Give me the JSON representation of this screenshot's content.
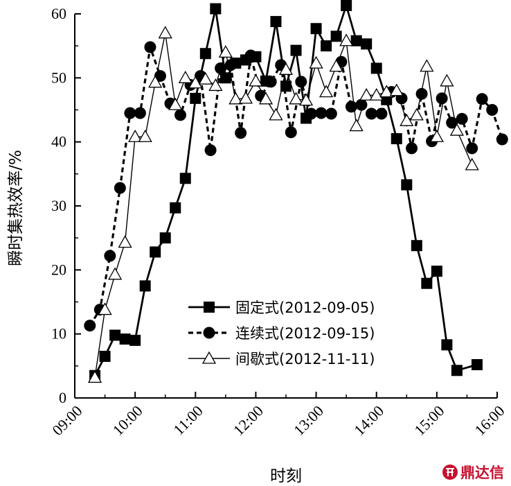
{
  "chart_data": {
    "type": "line",
    "xlabel": "时刻",
    "ylabel": "瞬时集热效率/%",
    "xlim": [
      "09:00",
      "16:00"
    ],
    "ylim": [
      0,
      60
    ],
    "xticks": [
      "09:00",
      "10:00",
      "11:00",
      "12:00",
      "13:00",
      "14:00",
      "15:00",
      "16:00"
    ],
    "yticks": [
      0,
      10,
      20,
      30,
      40,
      50,
      60
    ],
    "grid": false,
    "legend_position": "bottom-center",
    "series": [
      {
        "name": "固定式(2012-09-05)",
        "marker": "square",
        "line": "solid",
        "color": "#000000",
        "points": [
          [
            "09:20",
            3.5
          ],
          [
            "09:30",
            6.5
          ],
          [
            "09:40",
            9.8
          ],
          [
            "09:50",
            9.2
          ],
          [
            "10:00",
            9.0
          ],
          [
            "10:10",
            17.5
          ],
          [
            "10:20",
            22.8
          ],
          [
            "10:30",
            25.0
          ],
          [
            "10:40",
            29.7
          ],
          [
            "10:50",
            34.3
          ],
          [
            "11:00",
            46.8
          ],
          [
            "11:10",
            53.8
          ],
          [
            "11:20",
            60.8
          ],
          [
            "11:30",
            50.0
          ],
          [
            "11:40",
            52.3
          ],
          [
            "11:50",
            52.8
          ],
          [
            "12:00",
            53.3
          ],
          [
            "12:10",
            49.5
          ],
          [
            "12:20",
            58.8
          ],
          [
            "12:30",
            48.7
          ],
          [
            "12:40",
            54.3
          ],
          [
            "12:50",
            43.7
          ],
          [
            "13:00",
            57.7
          ],
          [
            "13:10",
            55.0
          ],
          [
            "13:20",
            56.5
          ],
          [
            "13:30",
            61.3
          ],
          [
            "13:40",
            55.8
          ],
          [
            "13:50",
            55.3
          ],
          [
            "14:00",
            51.5
          ],
          [
            "14:10",
            46.6
          ],
          [
            "14:20",
            40.5
          ],
          [
            "14:30",
            33.3
          ],
          [
            "14:40",
            23.8
          ],
          [
            "14:50",
            17.9
          ],
          [
            "15:00",
            19.8
          ],
          [
            "15:10",
            8.3
          ],
          [
            "15:20",
            4.3
          ],
          [
            "15:40",
            5.2
          ]
        ]
      },
      {
        "name": "连续式(2012-09-15)",
        "marker": "circle",
        "line": "dashed",
        "color": "#000000",
        "points": [
          [
            "09:15",
            11.3
          ],
          [
            "09:25",
            13.8
          ],
          [
            "09:35",
            22.2
          ],
          [
            "09:45",
            32.8
          ],
          [
            "09:55",
            44.5
          ],
          [
            "10:05",
            44.5
          ],
          [
            "10:15",
            54.8
          ],
          [
            "10:25",
            50.3
          ],
          [
            "10:35",
            46.0
          ],
          [
            "10:45",
            44.2
          ],
          [
            "10:55",
            48.9
          ],
          [
            "11:05",
            50.3
          ],
          [
            "11:15",
            38.7
          ],
          [
            "11:25",
            51.5
          ],
          [
            "11:35",
            52.0
          ],
          [
            "11:45",
            41.4
          ],
          [
            "11:55",
            53.5
          ],
          [
            "12:05",
            47.2
          ],
          [
            "12:15",
            49.4
          ],
          [
            "12:25",
            52.0
          ],
          [
            "12:35",
            41.5
          ],
          [
            "12:45",
            49.4
          ],
          [
            "12:55",
            44.4
          ],
          [
            "13:05",
            44.5
          ],
          [
            "13:15",
            44.4
          ],
          [
            "13:25",
            52.5
          ],
          [
            "13:35",
            45.5
          ],
          [
            "13:45",
            45.8
          ],
          [
            "13:55",
            44.4
          ],
          [
            "14:05",
            44.4
          ],
          [
            "14:15",
            47.8
          ],
          [
            "14:25",
            46.8
          ],
          [
            "14:35",
            39.0
          ],
          [
            "14:45",
            47.5
          ],
          [
            "14:55",
            40.1
          ],
          [
            "15:05",
            46.8
          ],
          [
            "15:15",
            43.0
          ],
          [
            "15:25",
            43.6
          ],
          [
            "15:35",
            39.0
          ],
          [
            "15:45",
            46.7
          ],
          [
            "15:55",
            45.0
          ],
          [
            "16:05",
            40.4
          ]
        ]
      },
      {
        "name": "间歇式(2012-11-11)",
        "marker": "triangle",
        "line": "solid-thin",
        "color": "#000000",
        "points": [
          [
            "09:20",
            3.2
          ],
          [
            "09:30",
            13.8
          ],
          [
            "09:40",
            19.3
          ],
          [
            "09:50",
            24.3
          ],
          [
            "10:00",
            40.8
          ],
          [
            "10:10",
            40.8
          ],
          [
            "10:20",
            49.3
          ],
          [
            "10:30",
            57.0
          ],
          [
            "10:40",
            45.8
          ],
          [
            "10:50",
            50.0
          ],
          [
            "11:00",
            49.2
          ],
          [
            "11:10",
            49.8
          ],
          [
            "11:20",
            48.8
          ],
          [
            "11:30",
            54.0
          ],
          [
            "11:40",
            46.7
          ],
          [
            "11:50",
            46.8
          ],
          [
            "12:00",
            49.5
          ],
          [
            "12:10",
            46.7
          ],
          [
            "12:20",
            44.2
          ],
          [
            "12:30",
            51.3
          ],
          [
            "12:40",
            46.7
          ],
          [
            "12:50",
            46.5
          ],
          [
            "13:00",
            52.3
          ],
          [
            "13:10",
            47.8
          ],
          [
            "13:20",
            51.8
          ],
          [
            "13:30",
            55.8
          ],
          [
            "13:40",
            42.5
          ],
          [
            "13:50",
            47.3
          ],
          [
            "14:00",
            47.3
          ],
          [
            "14:10",
            47.8
          ],
          [
            "14:20",
            48.0
          ],
          [
            "14:30",
            43.3
          ],
          [
            "14:40",
            44.2
          ],
          [
            "14:50",
            51.8
          ],
          [
            "15:00",
            40.8
          ],
          [
            "15:10",
            49.5
          ],
          [
            "15:20",
            41.8
          ],
          [
            "15:35",
            36.4
          ]
        ]
      }
    ]
  },
  "watermark": {
    "text": "鼎达信",
    "color": "#c8102e"
  }
}
